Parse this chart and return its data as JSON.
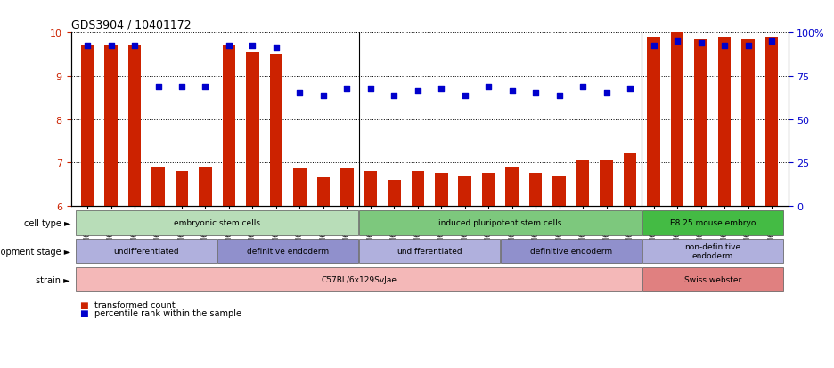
{
  "title": "GDS3904 / 10401172",
  "samples": [
    "GSM668567",
    "GSM668568",
    "GSM668569",
    "GSM668582",
    "GSM668583",
    "GSM668584",
    "GSM668564",
    "GSM668565",
    "GSM668566",
    "GSM668579",
    "GSM668580",
    "GSM668581",
    "GSM668585",
    "GSM668586",
    "GSM668587",
    "GSM668588",
    "GSM668589",
    "GSM668590",
    "GSM668576",
    "GSM668577",
    "GSM668578",
    "GSM668591",
    "GSM668592",
    "GSM668593",
    "GSM668573",
    "GSM668574",
    "GSM668575",
    "GSM668570",
    "GSM668571",
    "GSM668572"
  ],
  "bar_values": [
    9.7,
    9.7,
    9.7,
    6.9,
    6.8,
    6.9,
    9.7,
    9.55,
    9.5,
    6.85,
    6.65,
    6.85,
    6.8,
    6.6,
    6.8,
    6.75,
    6.7,
    6.75,
    6.9,
    6.75,
    6.7,
    7.05,
    7.05,
    7.2,
    9.9,
    10.0,
    9.85,
    9.9,
    9.85,
    9.9
  ],
  "percentile_values": [
    9.7,
    9.7,
    9.7,
    8.75,
    8.75,
    8.75,
    9.7,
    9.7,
    9.65,
    8.6,
    8.55,
    8.7,
    8.7,
    8.55,
    8.65,
    8.7,
    8.55,
    8.75,
    8.65,
    8.6,
    8.55,
    8.75,
    8.6,
    8.7,
    9.7,
    9.8,
    9.75,
    9.7,
    9.7,
    9.8
  ],
  "ylim": [
    6,
    10
  ],
  "yticks_left": [
    6,
    7,
    8,
    9,
    10
  ],
  "yticks_right": [
    6,
    7,
    8,
    9,
    10
  ],
  "ytick_right_labels": [
    "0",
    "25",
    "50",
    "75",
    "100%"
  ],
  "bar_color": "#cc2200",
  "dot_color": "#0000cc",
  "cell_type_groups": [
    {
      "label": "embryonic stem cells",
      "start": 0,
      "end": 11,
      "color": "#b8ddb8"
    },
    {
      "label": "induced pluripotent stem cells",
      "start": 12,
      "end": 23,
      "color": "#7dc87d"
    },
    {
      "label": "E8.25 mouse embryo",
      "start": 24,
      "end": 29,
      "color": "#44bb44"
    }
  ],
  "dev_stage_groups": [
    {
      "label": "undifferentiated",
      "start": 0,
      "end": 5,
      "color": "#b0b0dd"
    },
    {
      "label": "definitive endoderm",
      "start": 6,
      "end": 11,
      "color": "#9090cc"
    },
    {
      "label": "undifferentiated",
      "start": 12,
      "end": 17,
      "color": "#b0b0dd"
    },
    {
      "label": "definitive endoderm",
      "start": 18,
      "end": 23,
      "color": "#9090cc"
    },
    {
      "label": "non-definitive\nendoderm",
      "start": 24,
      "end": 29,
      "color": "#b0b0dd"
    }
  ],
  "strain_groups": [
    {
      "label": "C57BL/6x129SvJae",
      "start": 0,
      "end": 23,
      "color": "#f4b8b8"
    },
    {
      "label": "Swiss webster",
      "start": 24,
      "end": 29,
      "color": "#e08080"
    }
  ],
  "row_labels": [
    "cell type ►",
    "development stage ►",
    "strain ►"
  ],
  "legend_items": [
    {
      "label": "transformed count",
      "color": "#cc2200"
    },
    {
      "label": "percentile rank within the sample",
      "color": "#0000cc"
    }
  ],
  "background_color": "#ffffff"
}
